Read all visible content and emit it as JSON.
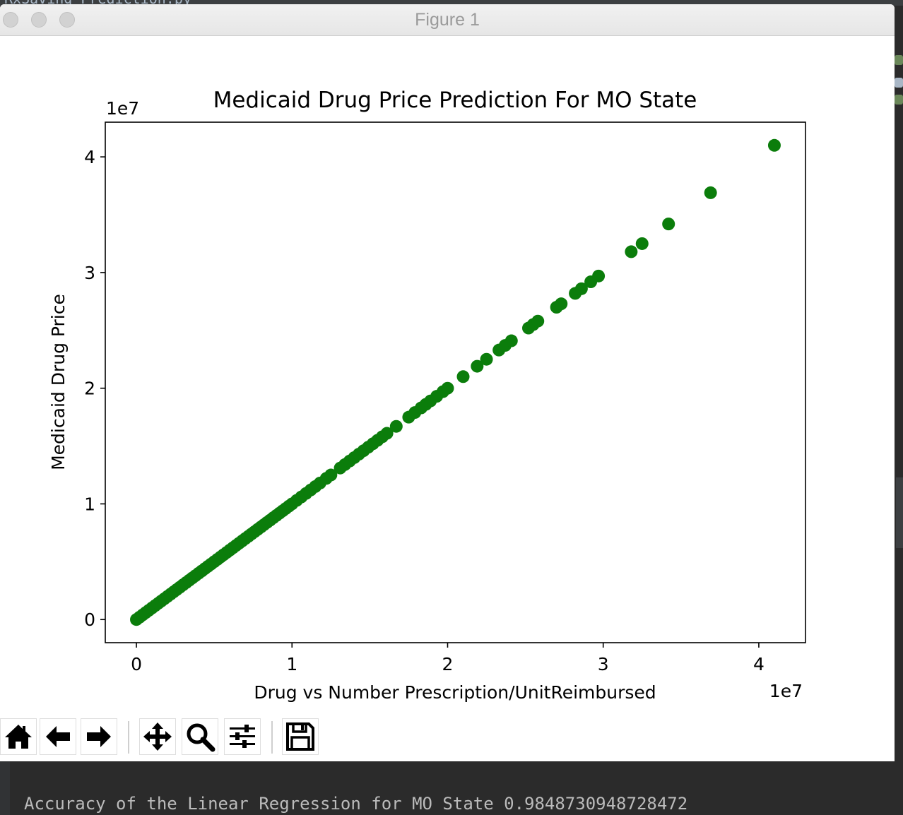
{
  "background_editor": {
    "file_label": "RxSaving_Prediction.py"
  },
  "window": {
    "title": "Figure 1"
  },
  "toolbar": {
    "buttons": [
      {
        "name": "home-button",
        "icon": "home-icon"
      },
      {
        "name": "back-button",
        "icon": "arrow-left-icon"
      },
      {
        "name": "forward-button",
        "icon": "arrow-right-icon"
      },
      {
        "name": "pan-button",
        "icon": "move-icon"
      },
      {
        "name": "zoom-button",
        "icon": "magnifier-icon"
      },
      {
        "name": "configure-subplots-button",
        "icon": "sliders-icon"
      },
      {
        "name": "save-button",
        "icon": "floppy-disk-icon"
      }
    ]
  },
  "console": {
    "output": "Accuracy of the Linear Regression for MO State 0.9848730948728472"
  },
  "colors": {
    "marker": "#0b7d0b",
    "axes": "#000000",
    "console_bg": "#2b2b2b",
    "console_text": "#bbbbbb"
  },
  "chart_data": {
    "type": "scatter",
    "title": "Medicaid Drug Price Prediction For MO State",
    "xlabel": "Drug vs Number Prescription/UnitReimbursed",
    "ylabel": "Medicaid Drug Price",
    "x_offset_text": "1e7",
    "y_offset_text": "1e7",
    "xlim": [
      -0.2,
      4.3
    ],
    "ylim": [
      -0.2,
      4.3
    ],
    "x_ticks": [
      0,
      1,
      2,
      3,
      4
    ],
    "y_ticks": [
      0,
      1,
      2,
      3,
      4
    ],
    "x_tick_labels": [
      "0",
      "1",
      "2",
      "3",
      "4"
    ],
    "y_tick_labels": [
      "0",
      "1",
      "2",
      "3",
      "4"
    ],
    "units_note": "values in units of 1e7",
    "grid": false,
    "legend": "none",
    "series": [
      {
        "color": "#0b7d0b",
        "x": [
          0,
          0.02,
          0.04,
          0.06,
          0.08,
          0.1,
          0.12,
          0.14,
          0.16,
          0.18,
          0.2,
          0.22,
          0.24,
          0.26,
          0.28,
          0.3,
          0.32,
          0.34,
          0.36,
          0.38,
          0.4,
          0.42,
          0.44,
          0.46,
          0.48,
          0.5,
          0.52,
          0.54,
          0.56,
          0.58,
          0.6,
          0.62,
          0.64,
          0.66,
          0.68,
          0.7,
          0.72,
          0.74,
          0.76,
          0.78,
          0.8,
          0.82,
          0.84,
          0.86,
          0.88,
          0.9,
          0.92,
          0.94,
          0.96,
          0.98,
          1.0,
          1.03,
          1.06,
          1.09,
          1.12,
          1.15,
          1.18,
          1.22,
          1.25,
          1.31,
          1.34,
          1.37,
          1.4,
          1.43,
          1.46,
          1.49,
          1.52,
          1.55,
          1.58,
          1.61,
          1.67,
          1.75,
          1.79,
          1.83,
          1.86,
          1.89,
          1.93,
          1.97,
          2.0,
          2.1,
          2.19,
          2.25,
          2.33,
          2.37,
          2.41,
          2.52,
          2.55,
          2.58,
          2.7,
          2.73,
          2.82,
          2.86,
          2.92,
          2.97,
          3.18,
          3.25,
          3.42,
          3.69,
          4.1
        ],
        "y": [
          0,
          0.02,
          0.04,
          0.06,
          0.08,
          0.1,
          0.12,
          0.14,
          0.16,
          0.18,
          0.2,
          0.22,
          0.24,
          0.26,
          0.28,
          0.3,
          0.32,
          0.34,
          0.36,
          0.38,
          0.4,
          0.42,
          0.44,
          0.46,
          0.48,
          0.5,
          0.52,
          0.54,
          0.56,
          0.58,
          0.6,
          0.62,
          0.64,
          0.66,
          0.68,
          0.7,
          0.72,
          0.74,
          0.76,
          0.78,
          0.8,
          0.82,
          0.84,
          0.86,
          0.88,
          0.9,
          0.92,
          0.94,
          0.96,
          0.98,
          1.0,
          1.03,
          1.06,
          1.09,
          1.12,
          1.15,
          1.18,
          1.22,
          1.25,
          1.31,
          1.34,
          1.37,
          1.4,
          1.43,
          1.46,
          1.49,
          1.52,
          1.55,
          1.58,
          1.61,
          1.67,
          1.75,
          1.79,
          1.83,
          1.86,
          1.89,
          1.93,
          1.97,
          2.0,
          2.1,
          2.19,
          2.25,
          2.33,
          2.37,
          2.41,
          2.52,
          2.55,
          2.58,
          2.7,
          2.73,
          2.82,
          2.86,
          2.92,
          2.97,
          3.18,
          3.25,
          3.42,
          3.69,
          4.1
        ]
      }
    ]
  }
}
